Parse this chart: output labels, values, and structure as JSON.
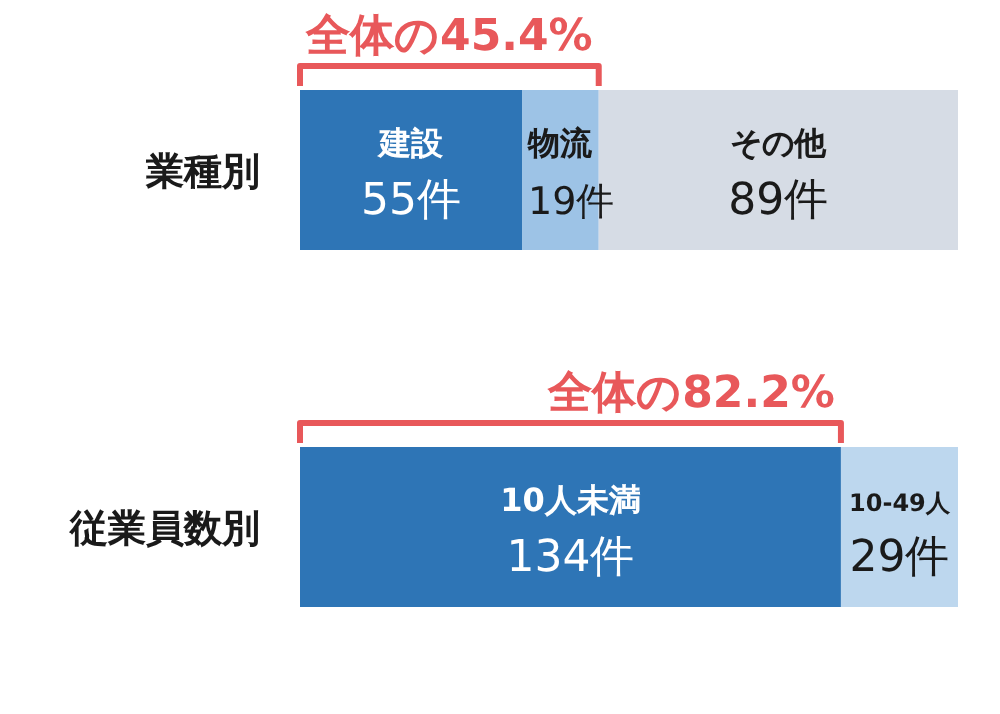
{
  "chart_data": [
    {
      "type": "bar",
      "orientation": "horizontal",
      "stacked": true,
      "categories": [
        "業種別"
      ],
      "series": [
        {
          "name": "建設",
          "color": "#2e75b6",
          "values": [
            55
          ],
          "value_labels": [
            "55件"
          ]
        },
        {
          "name": "物流",
          "color": "#9dc3e6",
          "values": [
            19
          ],
          "value_labels": [
            "19件"
          ]
        },
        {
          "name": "その他",
          "color": "#d6dce5",
          "values": [
            89
          ],
          "value_labels": [
            "89件"
          ]
        }
      ],
      "annotations": [
        {
          "text": "全体の45.4%",
          "x": 74,
          "y": "業種別"
        }
      ]
    },
    {
      "type": "bar",
      "orientation": "horizontal",
      "stacked": true,
      "categories": [
        "従業員数別"
      ],
      "series": [
        {
          "name": "10人未満",
          "color": "#2e75b6",
          "values": [
            134
          ],
          "value_labels": [
            "134件"
          ]
        },
        {
          "name": "10-49人",
          "color": "#bdd7ee",
          "values": [
            29
          ],
          "value_labels": [
            "29件"
          ]
        }
      ],
      "annotations": [
        {
          "text": "全体の82.2%",
          "x": 134,
          "y": "従業員数別"
        }
      ]
    }
  ]
}
